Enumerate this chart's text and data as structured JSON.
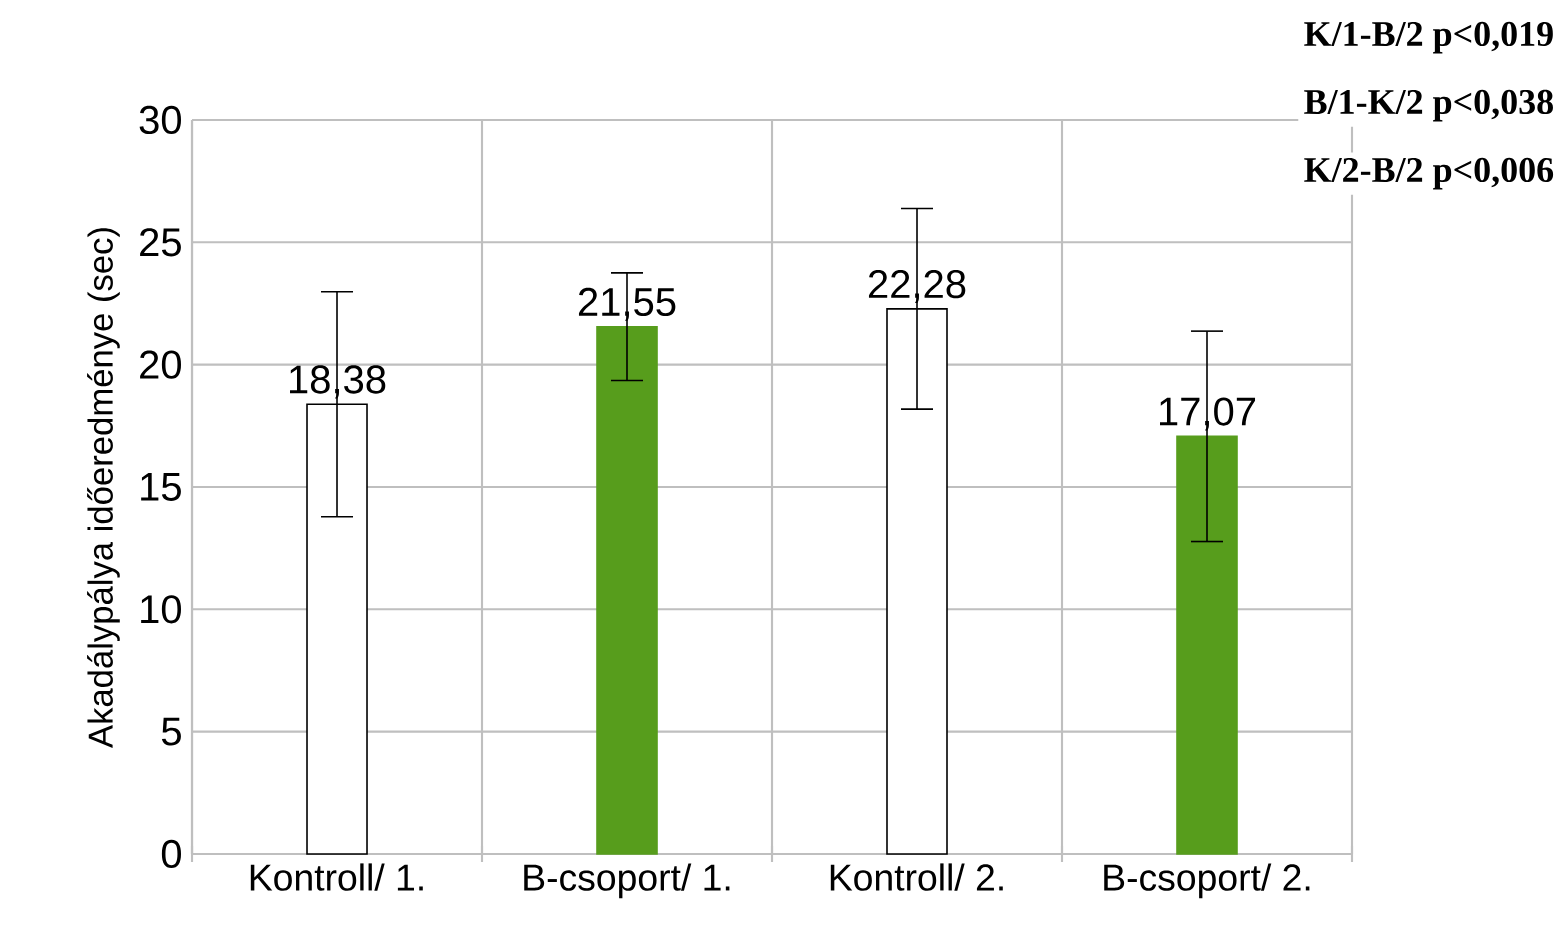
{
  "chart_data": {
    "type": "bar",
    "ylabel": "Akadálypálya időeredménye (sec)",
    "categories": [
      "Kontroll/ 1.",
      "B-csoport/ 1.",
      "Kontroll/ 2.",
      "B-csoport/ 2."
    ],
    "values": [
      18.38,
      21.55,
      22.28,
      17.07
    ],
    "colors": [
      "#ffffff",
      "#579d1c",
      "#ffffff",
      "#579d1c"
    ],
    "errors": [
      4.6,
      2.2,
      4.1,
      4.3
    ],
    "value_labels": [
      "18,38",
      "21,55",
      "22,28",
      "17,07"
    ],
    "ylim": [
      0,
      30
    ],
    "yticks": [
      0,
      5,
      10,
      15,
      20,
      25,
      30
    ],
    "grid": true,
    "annotations": [
      "K/1-B/2 p<0,019",
      "B/1-K/2 p<0,038",
      "K/2-B/2 p<0,006"
    ]
  }
}
